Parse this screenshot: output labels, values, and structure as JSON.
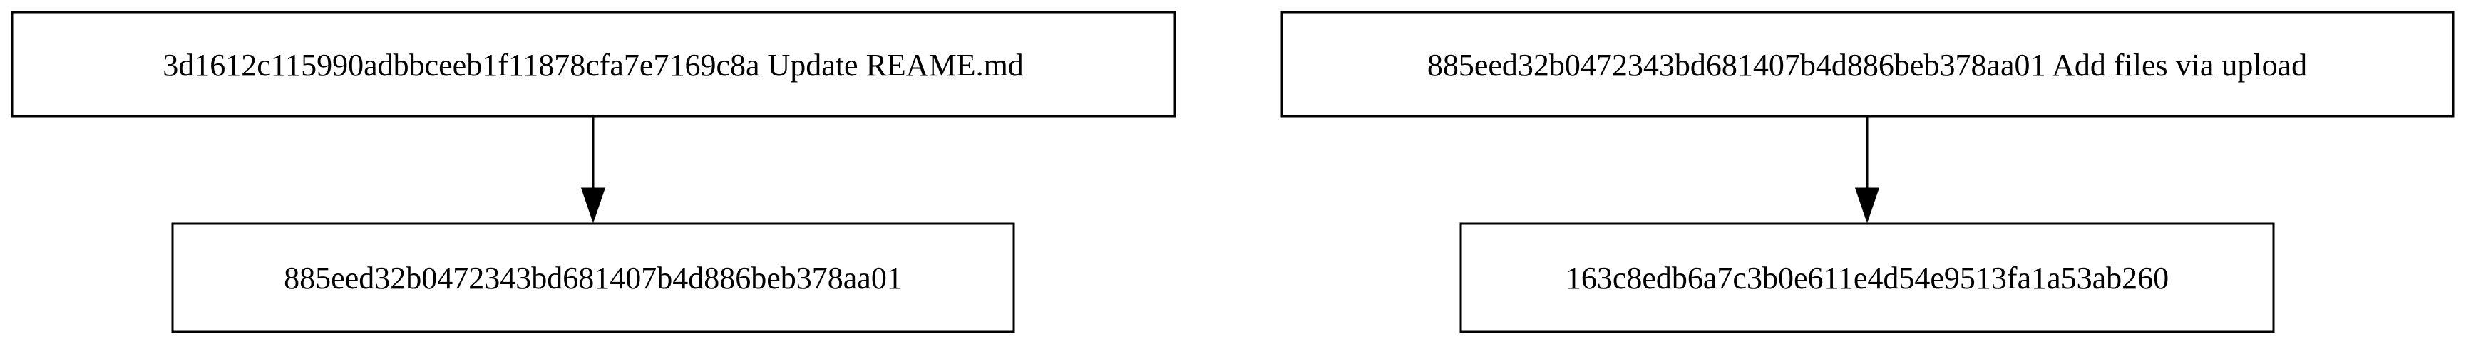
{
  "nodes": [
    {
      "id": "n1",
      "label": "3d1612c115990adbbceeb1f11878cfa7e7169c8a Update REAME.md"
    },
    {
      "id": "n2",
      "label": "885eed32b0472343bd681407b4d886beb378aa01"
    },
    {
      "id": "n3",
      "label": "885eed32b0472343bd681407b4d886beb378aa01 Add files via upload"
    },
    {
      "id": "n4",
      "label": "163c8edb6a7c3b0e611e4d54e9513fa1a53ab260"
    }
  ],
  "edges": [
    {
      "from": "n1",
      "to": "n2"
    },
    {
      "from": "n3",
      "to": "n4"
    }
  ]
}
